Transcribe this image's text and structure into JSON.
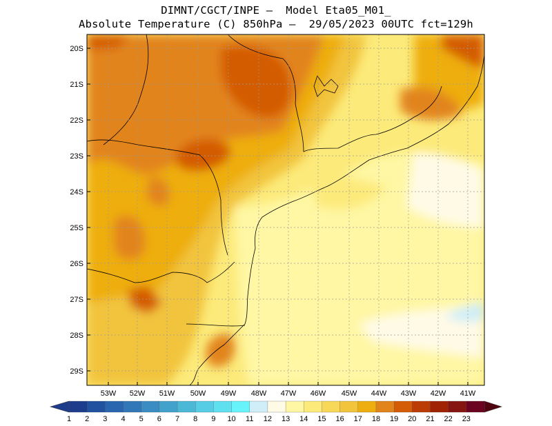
{
  "header": {
    "line1": "DIMNT/CGCT/INPE –  Model Eta05_M01_",
    "line2": "Absolute Temperature (C) 850hPa –  29/05/2023 00UTC fct=129h"
  },
  "map": {
    "lat_labels": [
      "20S",
      "21S",
      "22S",
      "23S",
      "24S",
      "25S",
      "26S",
      "27S",
      "28S",
      "29S"
    ],
    "lon_labels": [
      "53W",
      "52W",
      "51W",
      "50W",
      "49W",
      "48W",
      "47W",
      "46W",
      "45W",
      "44W",
      "43W",
      "42W",
      "41W"
    ]
  },
  "legend": {
    "labels": [
      "1",
      "2",
      "3",
      "4",
      "5",
      "6",
      "7",
      "8",
      "9",
      "10",
      "11",
      "12",
      "13",
      "14",
      "15",
      "16",
      "17",
      "18",
      "19",
      "20",
      "21",
      "22",
      "23"
    ],
    "colors": [
      "#1d3c8c",
      "#2152a0",
      "#2a66b0",
      "#3278b8",
      "#3a8cc2",
      "#43a2cc",
      "#4cb8d8",
      "#56cde4",
      "#5fe0ee",
      "#66f4fa",
      "#cfeef8",
      "#fffae6",
      "#fff7a4",
      "#fcea7a",
      "#f8d858",
      "#f2c43c",
      "#eeae10",
      "#e2841c",
      "#d45c06",
      "#bc3c06",
      "#a02404",
      "#861410",
      "#6a0420"
    ],
    "left_end": "#1d3c8c",
    "right_end": "#50040f"
  }
}
